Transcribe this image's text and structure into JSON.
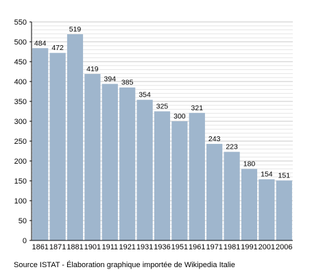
{
  "chart_data": {
    "type": "bar",
    "categories": [
      "1861",
      "1871",
      "1881",
      "1901",
      "1911",
      "1921",
      "1931",
      "1936",
      "1951",
      "1961",
      "1971",
      "1981",
      "1991",
      "2001",
      "2006"
    ],
    "values": [
      484,
      472,
      519,
      419,
      394,
      385,
      354,
      325,
      300,
      321,
      243,
      223,
      180,
      154,
      151
    ],
    "y_ticks": [
      0,
      50,
      100,
      150,
      200,
      250,
      300,
      350,
      400,
      450,
      500,
      550
    ],
    "ylim": [
      0,
      550
    ],
    "grid": true,
    "bar_color": "#9fb6cd",
    "grid_color": "#c8c8c8",
    "source": "Source ISTAT - Élaboration graphique importée de Wikipedia Italie"
  }
}
